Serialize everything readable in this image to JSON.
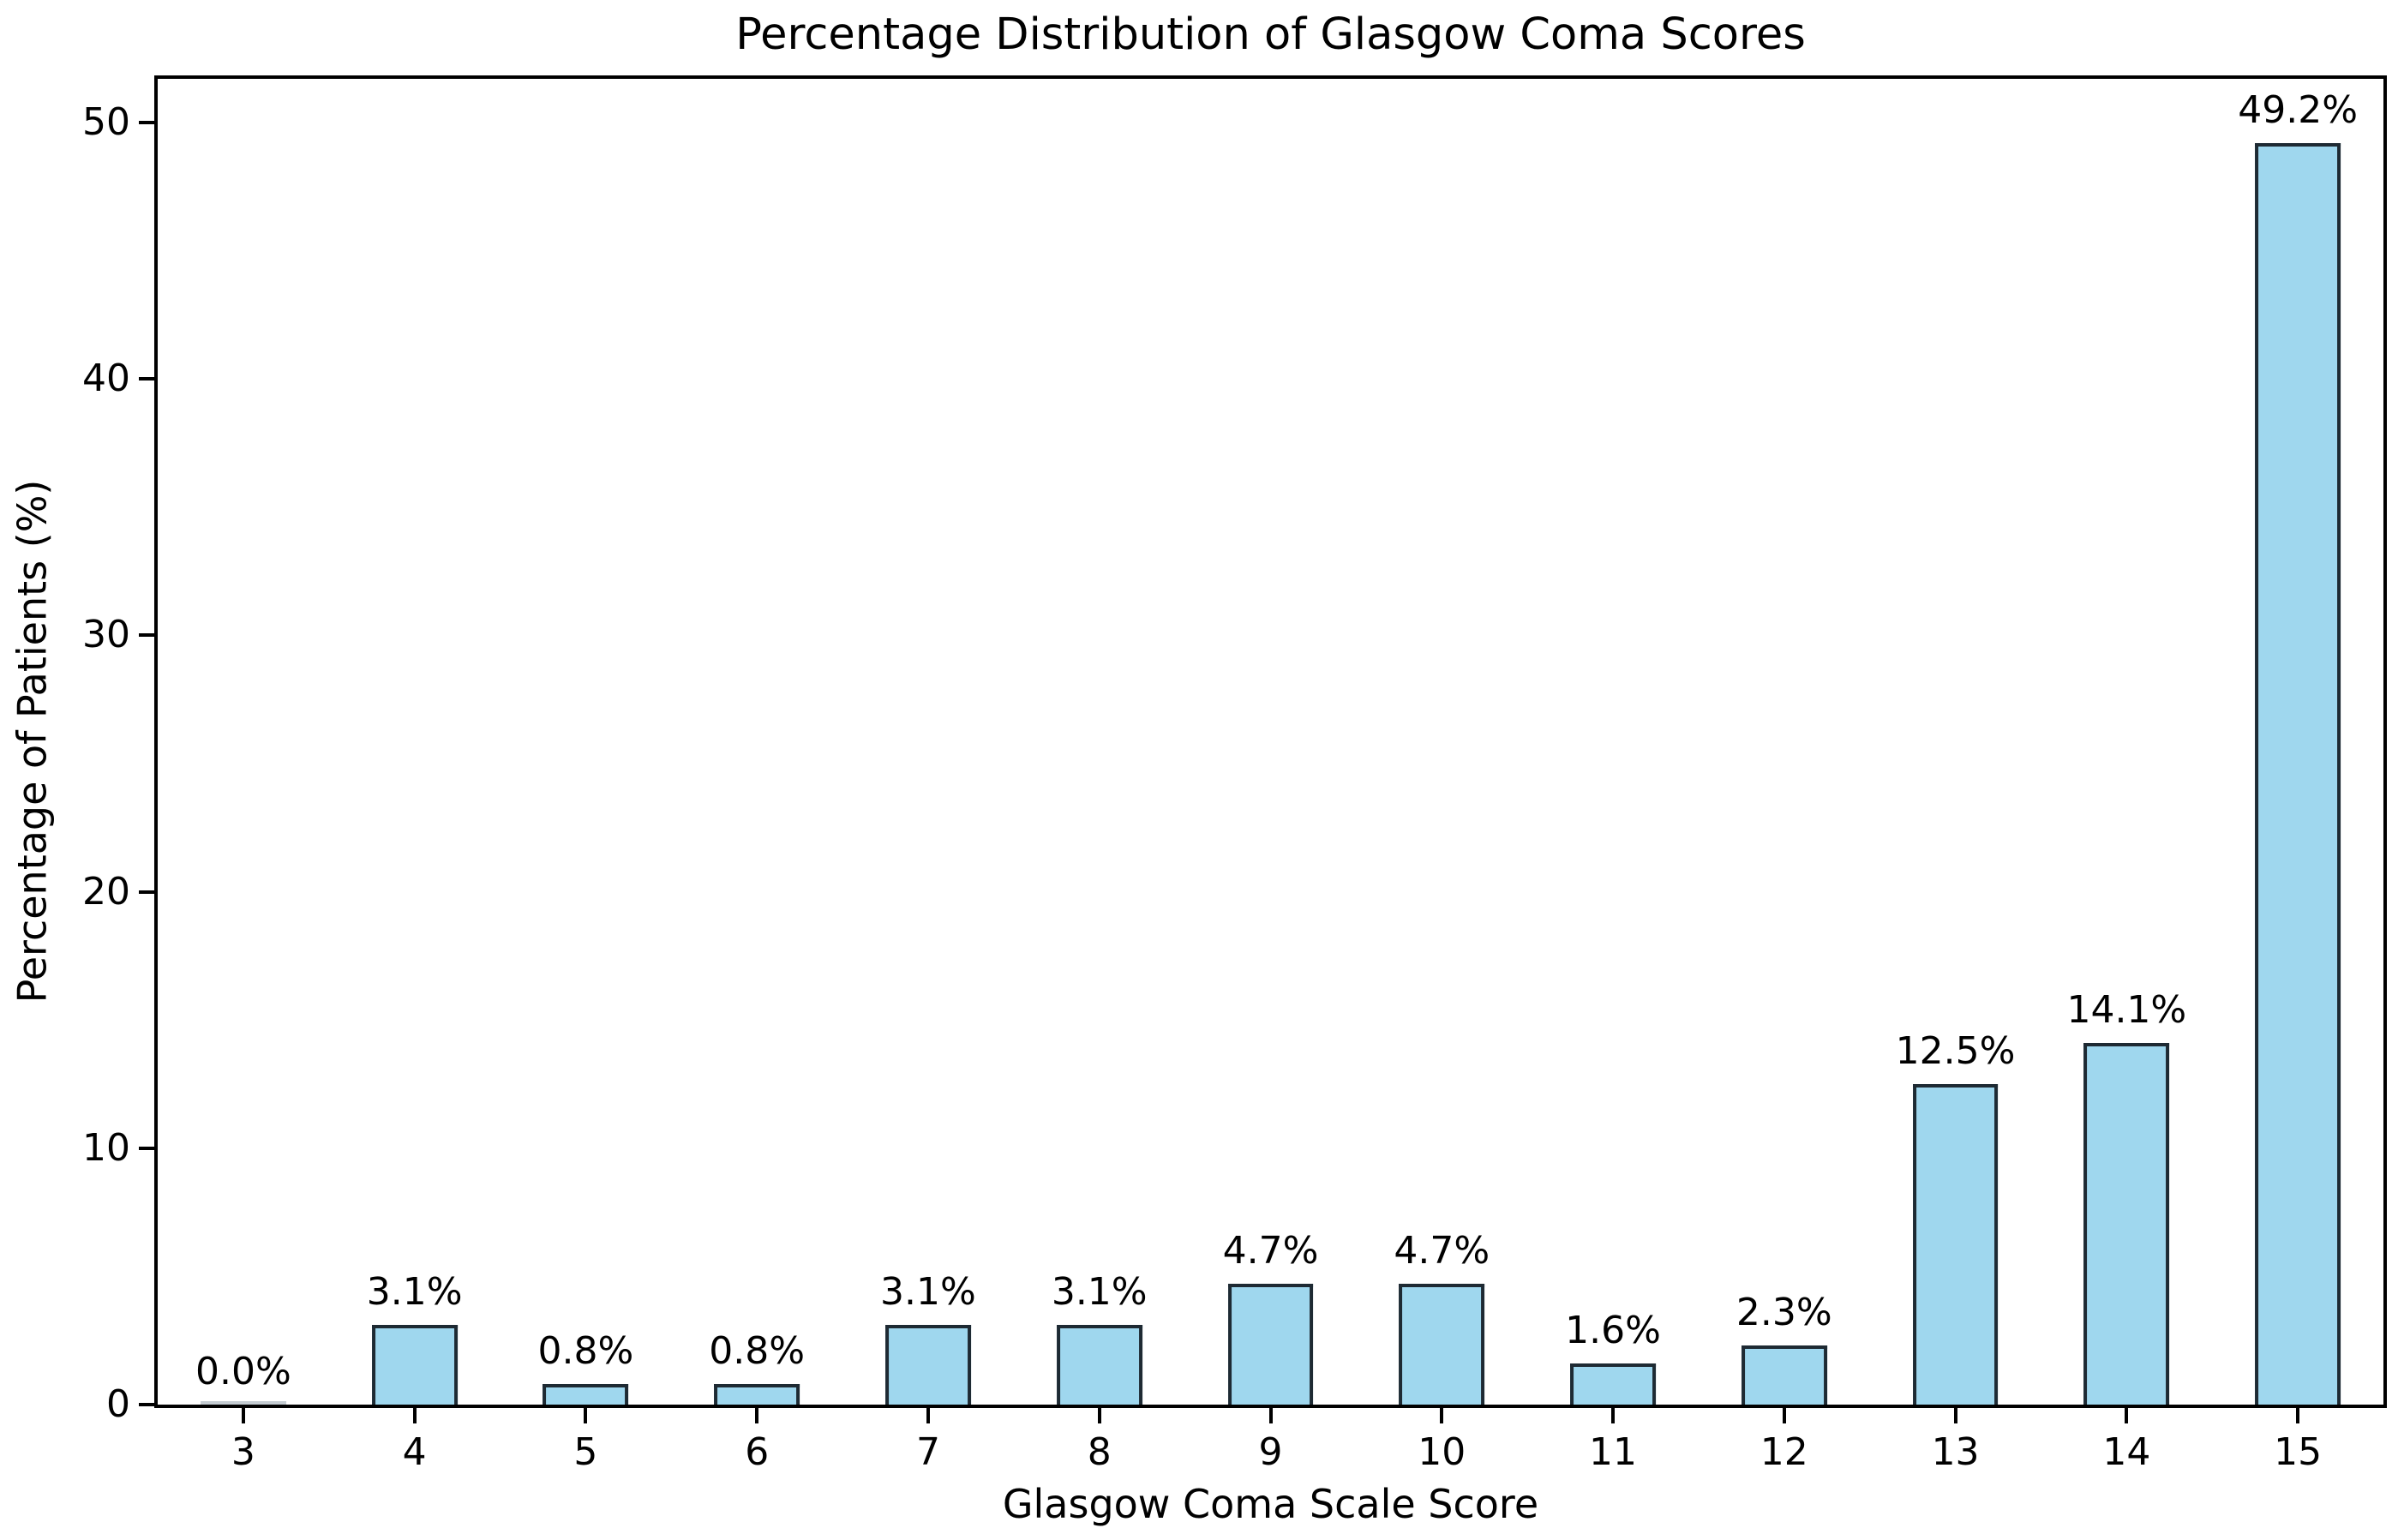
{
  "chart_data": {
    "type": "bar",
    "title": "Percentage Distribution of Glasgow Coma Scores",
    "xlabel": "Glasgow Coma Scale Score",
    "ylabel": "Percentage of Patients (%)",
    "categories": [
      "3",
      "4",
      "5",
      "6",
      "7",
      "8",
      "9",
      "10",
      "11",
      "12",
      "13",
      "14",
      "15"
    ],
    "values": [
      0.0,
      3.1,
      0.8,
      0.8,
      3.1,
      3.1,
      4.7,
      4.7,
      1.6,
      2.3,
      12.5,
      14.1,
      49.2
    ],
    "bar_labels": [
      "0.0%",
      "3.1%",
      "0.8%",
      "0.8%",
      "3.1%",
      "3.1%",
      "4.7%",
      "4.7%",
      "1.6%",
      "2.3%",
      "12.5%",
      "14.1%",
      "49.2%"
    ],
    "yticks": [
      0,
      10,
      20,
      30,
      40,
      50
    ],
    "ylim": [
      0,
      51.7
    ],
    "x_units": 13,
    "bar_width_units": 0.5,
    "grid": false,
    "legend": null,
    "colors": {
      "bar_fill": "#9fd7ee",
      "bar_edge": "#1e2a33",
      "zero_bar_line": "#c4ccd2",
      "axis": "#000000",
      "text": "#000000",
      "background": "#ffffff"
    }
  }
}
